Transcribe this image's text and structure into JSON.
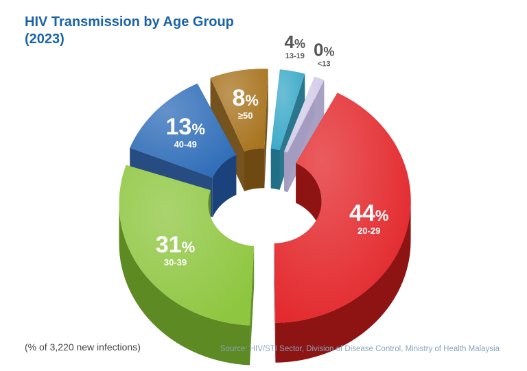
{
  "header": {
    "title_line1": "HIV Transmission by Age Group",
    "title_line2": "(2023)"
  },
  "footer": {
    "note": "(% of 3,220 new infections)",
    "source": "Source: HIV/STI Sector, Division of Disease Control, Ministry of Health Malaysia"
  },
  "chart_data": {
    "type": "pie",
    "variant": "3d-donut-exploded",
    "title": "HIV Transmission by Age Group (2023)",
    "note": "(% of 3,220 new infections)",
    "unit": "%",
    "total_new_infections": 3220,
    "categories": [
      "20-29",
      "30-39",
      "40-49",
      "≥50",
      "13-19",
      "<13"
    ],
    "values": [
      44,
      31,
      13,
      8,
      4,
      0
    ],
    "labels": [
      {
        "group": "20-29",
        "value": "44",
        "pct_sign": "%"
      },
      {
        "group": "30-39",
        "value": "31",
        "pct_sign": "%"
      },
      {
        "group": "40-49",
        "value": "13",
        "pct_sign": "%"
      },
      {
        "group": "≥50",
        "value": "8",
        "pct_sign": "%"
      },
      {
        "group": "13-19",
        "value": "4",
        "pct_sign": "%"
      },
      {
        "group": "<13",
        "value": "0",
        "pct_sign": "%"
      }
    ],
    "colors": [
      "#e3262a",
      "#8ec63f",
      "#2f6db8",
      "#a8741f",
      "#3aa9c8",
      "#d2cde8"
    ],
    "side_colors": [
      "#8e1414",
      "#5d8a22",
      "#1b427a",
      "#6e4a12",
      "#1f6f87",
      "#a39cc0"
    ]
  }
}
